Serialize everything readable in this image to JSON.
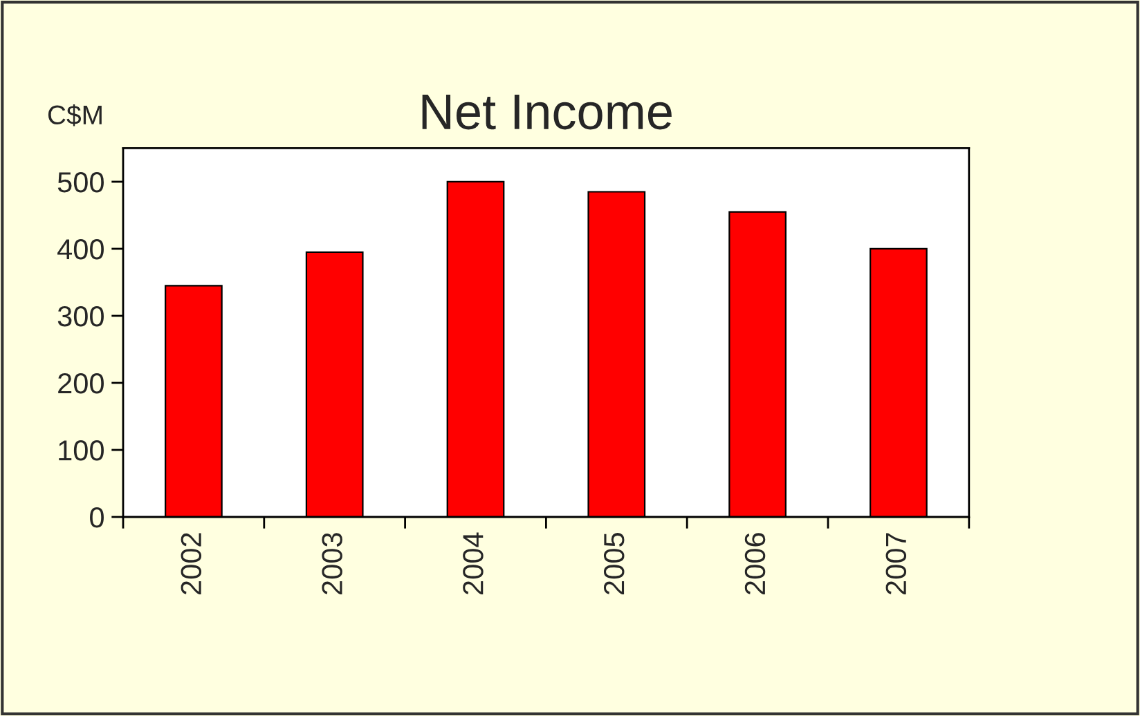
{
  "chart_data": {
    "type": "bar",
    "title": "Net Income",
    "ylabel": "C$M",
    "categories": [
      "2002",
      "2003",
      "2004",
      "2005",
      "2006",
      "2007"
    ],
    "values": [
      345,
      395,
      500,
      485,
      455,
      400
    ],
    "color": "#ff0000",
    "ylim": [
      0,
      550
    ],
    "yticks": [
      0,
      100,
      200,
      300,
      400,
      500
    ],
    "grid": false,
    "legend": false
  }
}
